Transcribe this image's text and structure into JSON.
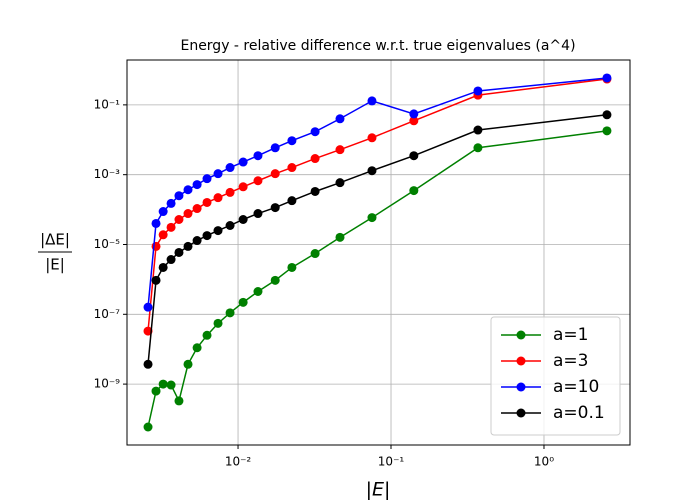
{
  "chart_data": {
    "type": "line",
    "title": "Energy - relative difference w.r.t. true eigenvalues (a^4)",
    "x_label": "|E|",
    "y_label": {
      "numerator": "|ΔE|",
      "denominator": "|E|"
    },
    "x": [
      0.00258,
      0.00291,
      0.00324,
      0.00365,
      0.00411,
      0.00471,
      0.0054,
      0.00627,
      0.0074,
      0.00887,
      0.0108,
      0.0135,
      0.0175,
      0.0225,
      0.0319,
      0.0464,
      0.0751,
      0.141,
      0.37,
      2.58
    ],
    "series": [
      {
        "name": "a=1",
        "color": "#008000",
        "values": [
          5.9e-11,
          6.3e-10,
          1e-09,
          9.4e-10,
          3.3e-10,
          3.7e-09,
          1.1e-08,
          2.5e-08,
          5.5e-08,
          1.1e-07,
          2.2e-07,
          4.5e-07,
          9.4e-07,
          2.2e-06,
          5.5e-06,
          1.6e-05,
          5.9e-05,
          0.00035,
          0.0059,
          0.018
        ]
      },
      {
        "name": "a=3",
        "color": "#ff0000",
        "values": [
          3.3e-08,
          8.8e-06,
          1.9e-05,
          3.1e-05,
          5.2e-05,
          7.7e-05,
          0.000107,
          0.00016,
          0.00022,
          0.00031,
          0.00045,
          0.00067,
          0.00107,
          0.0016,
          0.0029,
          0.0052,
          0.0114,
          0.035,
          0.19,
          0.55
        ]
      },
      {
        "name": "a=10",
        "color": "#0000ff",
        "values": [
          1.6e-07,
          4e-05,
          8.8e-05,
          0.00015,
          0.00025,
          0.00037,
          0.00052,
          0.00077,
          0.00107,
          0.0016,
          0.0023,
          0.0035,
          0.0059,
          0.0094,
          0.017,
          0.04,
          0.13,
          0.055,
          0.25,
          0.59
        ]
      },
      {
        "name": "a=0.1",
        "color": "#000000",
        "values": [
          3.7e-09,
          9.4e-07,
          2.2e-06,
          3.7e-06,
          5.9e-06,
          8.8e-06,
          1.3e-05,
          1.8e-05,
          2.5e-05,
          3.5e-05,
          5.2e-05,
          7.7e-05,
          0.000114,
          0.00018,
          0.00033,
          0.00059,
          0.0013,
          0.0035,
          0.019,
          0.052
        ]
      }
    ],
    "x_log": true,
    "y_log": true,
    "xlim": [
      0.00188,
      3.65
    ],
    "ylim": [
      1.8e-11,
      1.93
    ],
    "xticks": [
      {
        "value": 0.01,
        "label": "10⁻²"
      },
      {
        "value": 0.1,
        "label": "10⁻¹"
      },
      {
        "value": 1,
        "label": "10⁰"
      }
    ],
    "yticks": [
      {
        "value": 1e-09,
        "label": "10⁻⁹"
      },
      {
        "value": 1e-07,
        "label": "10⁻⁷"
      },
      {
        "value": 1e-05,
        "label": "10⁻⁵"
      },
      {
        "value": 0.001,
        "label": "10⁻³"
      },
      {
        "value": 0.1,
        "label": "10⁻¹"
      }
    ],
    "grid": true,
    "legend": "lower right"
  }
}
